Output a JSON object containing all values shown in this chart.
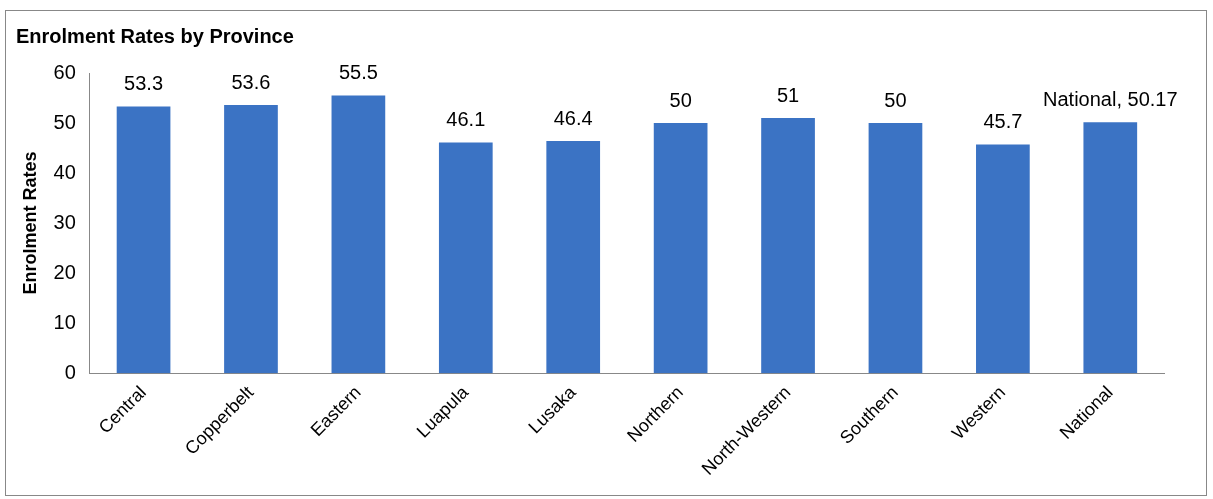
{
  "chart_data": {
    "type": "bar",
    "title": "Enrolment Rates by Province",
    "ylabel": "Enrolment Rates",
    "categories": [
      "Central",
      "Copperbelt",
      "Eastern",
      "Luapula",
      "Lusaka",
      "Northern",
      "North-Western",
      "Southern",
      "Western",
      "National"
    ],
    "values": [
      53.3,
      53.6,
      55.5,
      46.1,
      46.4,
      50,
      51,
      50,
      45.7,
      50.17
    ],
    "value_labels": [
      "53.3",
      "53.6",
      "55.5",
      "46.1",
      "46.4",
      "50",
      "51",
      "50",
      "45.7",
      "National, 50.17"
    ],
    "color": "#3b73c4",
    "ylim": [
      0,
      60
    ],
    "yticks": [
      0,
      10,
      20,
      30,
      40,
      50,
      60
    ],
    "grid": false,
    "legend": false
  }
}
